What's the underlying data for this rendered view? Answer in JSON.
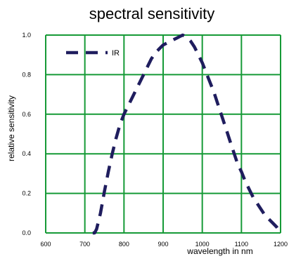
{
  "chart_data": {
    "type": "line",
    "title": "spectral sensitivity",
    "xlabel": "wavelength in nm",
    "ylabel": "relative sensitivity",
    "xlim": [
      600,
      1200
    ],
    "ylim": [
      0,
      1.0
    ],
    "x_ticks": [
      600,
      700,
      800,
      900,
      1000,
      1100,
      1200
    ],
    "y_ticks": [
      0.0,
      0.2,
      0.4,
      0.6,
      0.8,
      1.0
    ],
    "x_tick_labels": [
      "600",
      "700",
      "800",
      "900",
      "1000",
      "1100",
      "1200"
    ],
    "y_tick_labels": [
      "0.0",
      "0.2",
      "0.4",
      "0.6",
      "0.8",
      "1.0"
    ],
    "grid": true,
    "legend_position": "top-left",
    "colors": {
      "grid": "#169a37",
      "series": "#1f1d5e"
    },
    "series": [
      {
        "name": "IR",
        "line_style": "dashed",
        "x": [
          720,
          725,
          730,
          740,
          750,
          760,
          770,
          780,
          790,
          800,
          810,
          820,
          830,
          840,
          850,
          860,
          870,
          880,
          890,
          900,
          910,
          920,
          930,
          940,
          950,
          960,
          970,
          980,
          990,
          1000,
          1010,
          1020,
          1030,
          1040,
          1050,
          1060,
          1070,
          1080,
          1090,
          1100,
          1110,
          1120,
          1130,
          1140,
          1150,
          1160,
          1170,
          1180,
          1190,
          1200
        ],
        "y": [
          0.0,
          0.0,
          0.02,
          0.1,
          0.21,
          0.31,
          0.4,
          0.48,
          0.55,
          0.6,
          0.64,
          0.68,
          0.72,
          0.76,
          0.8,
          0.84,
          0.88,
          0.91,
          0.93,
          0.95,
          0.96,
          0.97,
          0.98,
          0.99,
          1.0,
          0.99,
          0.97,
          0.94,
          0.9,
          0.86,
          0.81,
          0.76,
          0.71,
          0.65,
          0.59,
          0.53,
          0.47,
          0.41,
          0.35,
          0.31,
          0.26,
          0.22,
          0.18,
          0.15,
          0.12,
          0.09,
          0.07,
          0.05,
          0.03,
          0.0
        ]
      }
    ]
  }
}
